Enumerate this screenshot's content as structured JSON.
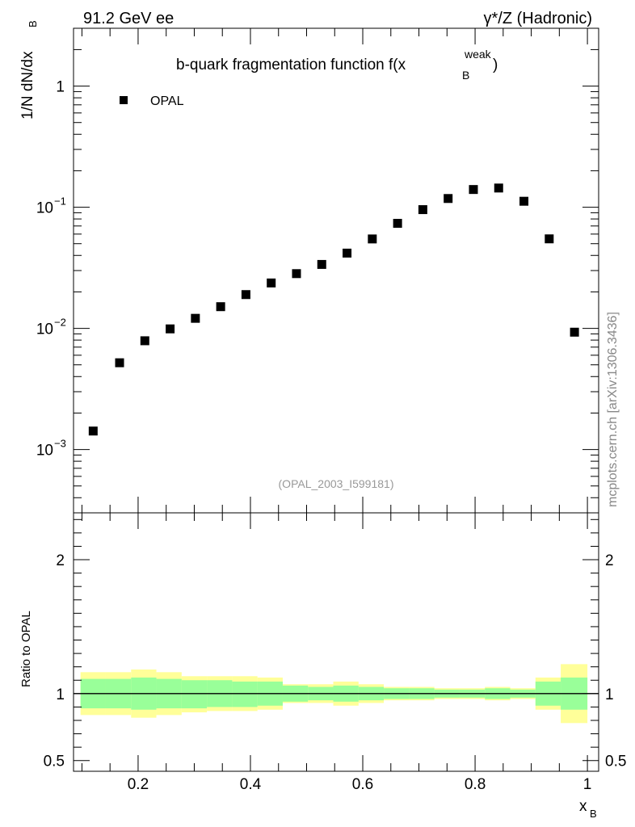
{
  "header": {
    "left_label": "91.2 GeV ee",
    "right_label": "γ*/Z (Hadronic)"
  },
  "watermark": "mcplots.cern.ch [arXiv:1306.3436]",
  "analysis_tag": "(OPAL_2003_I599181)",
  "chart_data": [
    {
      "type": "scatter",
      "title_main": "b-quark fragmentation function f(x",
      "title_sub": "B",
      "title_sup": "weak",
      "title_close": ")",
      "ylabel_main": "1/N  dN/dx",
      "ylabel_sub": "B",
      "yscale": "log",
      "ylim": [
        0.0003,
        3
      ],
      "xlim": [
        0.085,
        1.02
      ],
      "legend_placement": "top-left",
      "series": [
        {
          "name": "OPAL",
          "marker": "square",
          "color": "#000000",
          "x": [
            0.12,
            0.167,
            0.212,
            0.257,
            0.302,
            0.347,
            0.392,
            0.437,
            0.482,
            0.527,
            0.572,
            0.617,
            0.662,
            0.707,
            0.752,
            0.797,
            0.842,
            0.887,
            0.932,
            0.977
          ],
          "y": [
            0.00142,
            0.0052,
            0.0079,
            0.0099,
            0.0121,
            0.0151,
            0.019,
            0.0237,
            0.0283,
            0.0337,
            0.0418,
            0.0547,
            0.0736,
            0.0955,
            0.118,
            0.14,
            0.144,
            0.112,
            0.0548,
            0.0093
          ]
        }
      ],
      "yticks": [
        {
          "value": 1,
          "label": "1",
          "exp": ""
        },
        {
          "value": 0.1,
          "label": "10",
          "exp": "−1"
        },
        {
          "value": 0.01,
          "label": "10",
          "exp": "−2"
        },
        {
          "value": 0.001,
          "label": "10",
          "exp": "−3"
        }
      ]
    },
    {
      "type": "area",
      "ylabel": "Ratio to OPAL",
      "xlabel_main": "x",
      "xlabel_sub": "B",
      "ylim": [
        0.42,
        2.35
      ],
      "xlim": [
        0.085,
        1.02
      ],
      "reference_line": 1,
      "yticks": [
        {
          "value": 0.5,
          "label": "0.5"
        },
        {
          "value": 1,
          "label": "1"
        },
        {
          "value": 2,
          "label": "2"
        }
      ],
      "xticks": [
        {
          "value": 0.2,
          "label": "0.2"
        },
        {
          "value": 0.4,
          "label": "0.4"
        },
        {
          "value": 0.6,
          "label": "0.6"
        },
        {
          "value": 0.8,
          "label": "0.8"
        },
        {
          "value": 1,
          "label": "1"
        }
      ],
      "bins": [
        0.0975,
        0.1425,
        0.1875,
        0.2325,
        0.2775,
        0.3225,
        0.3675,
        0.4125,
        0.4575,
        0.5025,
        0.5475,
        0.5925,
        0.6375,
        0.6825,
        0.7275,
        0.7725,
        0.8175,
        0.8625,
        0.9075,
        0.9525,
        1.0
      ],
      "stat_band": {
        "color": "#99ff99",
        "lo": [
          0.89,
          0.89,
          0.88,
          0.89,
          0.89,
          0.9,
          0.9,
          0.91,
          0.94,
          0.95,
          0.94,
          0.95,
          0.96,
          0.96,
          0.97,
          0.97,
          0.96,
          0.97,
          0.91,
          0.88
        ],
        "hi": [
          1.11,
          1.11,
          1.12,
          1.11,
          1.1,
          1.1,
          1.09,
          1.09,
          1.06,
          1.05,
          1.06,
          1.05,
          1.04,
          1.04,
          1.03,
          1.03,
          1.04,
          1.03,
          1.09,
          1.12
        ]
      },
      "syst_band": {
        "color": "#ffff99",
        "lo": [
          0.84,
          0.84,
          0.82,
          0.84,
          0.86,
          0.87,
          0.87,
          0.88,
          0.93,
          0.93,
          0.91,
          0.93,
          0.95,
          0.95,
          0.96,
          0.96,
          0.95,
          0.96,
          0.88,
          0.78
        ],
        "hi": [
          1.16,
          1.16,
          1.18,
          1.16,
          1.13,
          1.13,
          1.13,
          1.12,
          1.07,
          1.07,
          1.09,
          1.07,
          1.05,
          1.05,
          1.04,
          1.04,
          1.05,
          1.04,
          1.12,
          1.22
        ]
      }
    }
  ]
}
